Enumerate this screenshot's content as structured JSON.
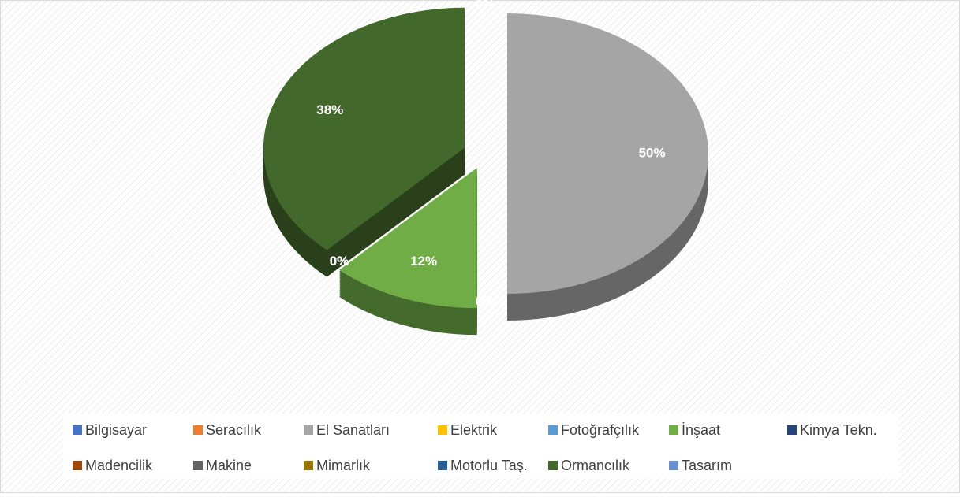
{
  "chart_data": {
    "type": "pie",
    "categories": [
      "Bilgisayar",
      "Seracılık",
      "El Sanatları",
      "Elektrik",
      "Fotoğrafçılık",
      "İnşaat",
      "Kimya Tekn.",
      "Madencilik",
      "Makine",
      "Mimarlık",
      "Motorlu Taş.",
      "Ormancılık",
      "Tasarım"
    ],
    "values": [
      0,
      0,
      50,
      0,
      0,
      12,
      0,
      0,
      0,
      0,
      0,
      38,
      0
    ],
    "value_labels": [
      "0%",
      "0%",
      "50%",
      "0%",
      "0%",
      "12%",
      "0%",
      "0%",
      "0%",
      "0%",
      "0%",
      "38%",
      "0%"
    ],
    "colors": [
      "#4472c4",
      "#ed7d31",
      "#a5a5a5",
      "#ffc000",
      "#5b9bd5",
      "#70ad47",
      "#264478",
      "#9e480e",
      "#636363",
      "#997300",
      "#255e91",
      "#43682b",
      "#698ed0"
    ],
    "legend": "bottom"
  }
}
